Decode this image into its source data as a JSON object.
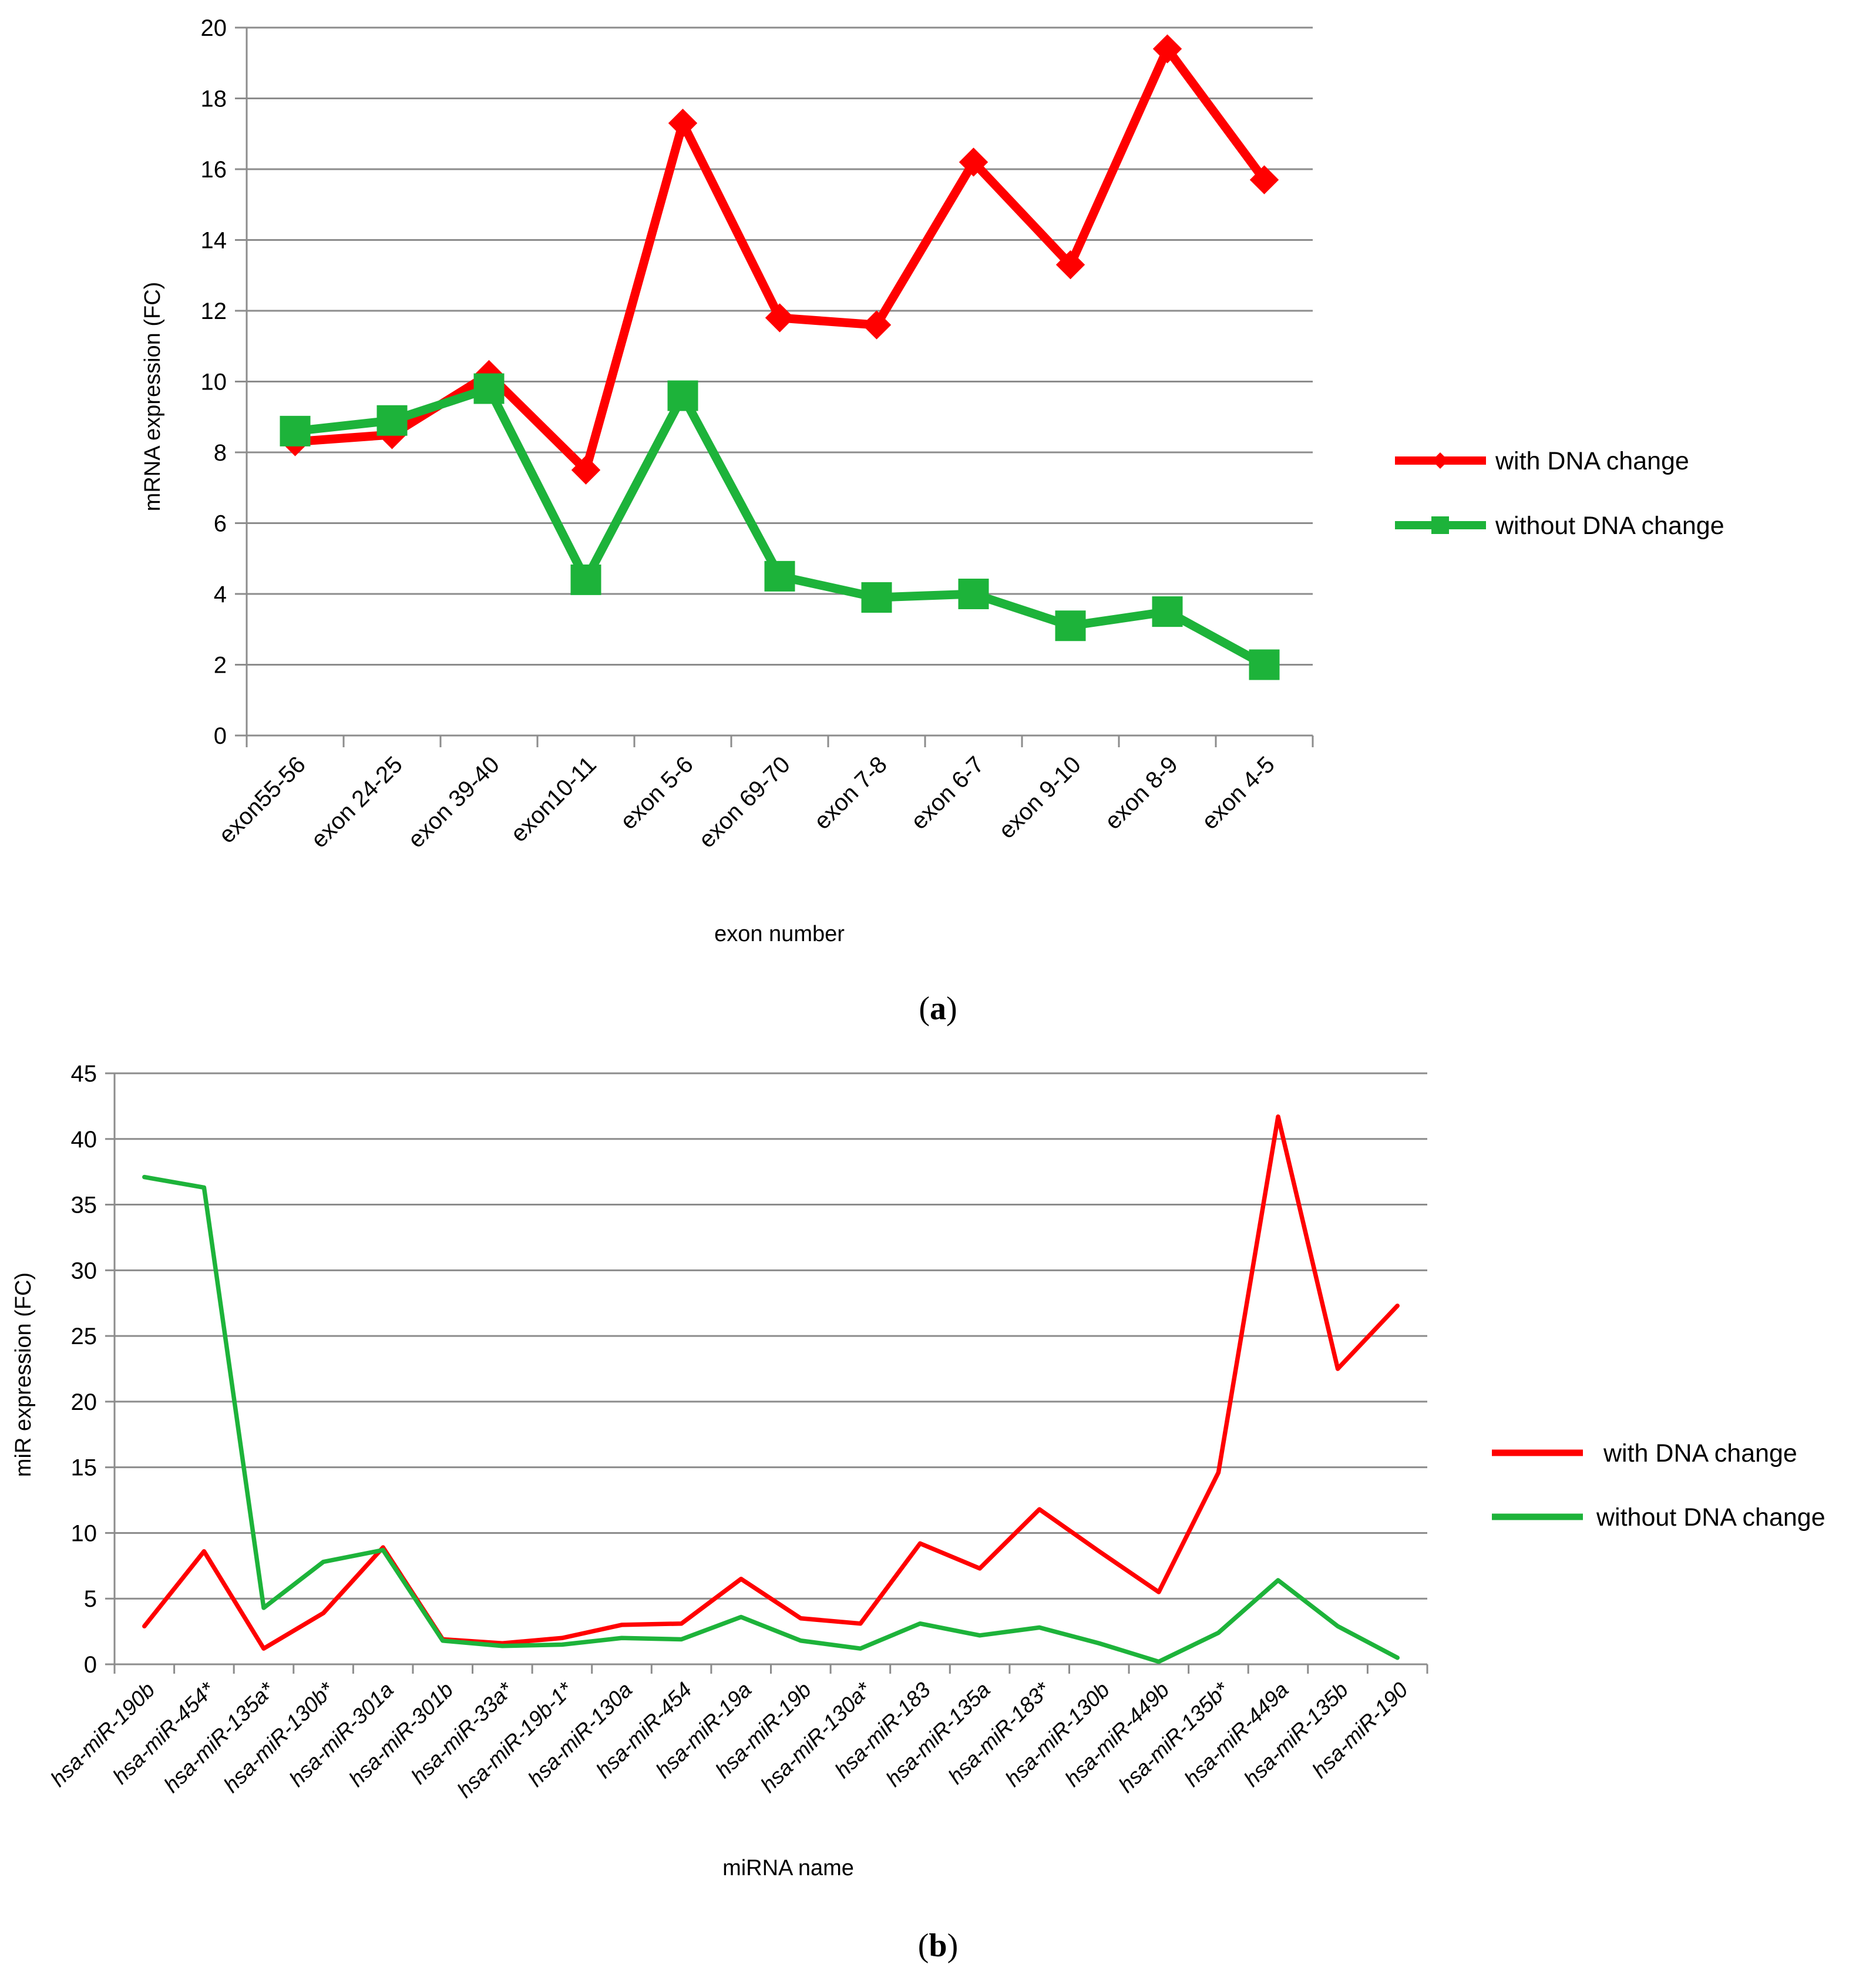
{
  "chart_data": [
    {
      "id": "a",
      "type": "line",
      "panel_label": "a",
      "xlabel": "exon number",
      "ylabel": "mRNA expression (FC)",
      "ylim": [
        0,
        20
      ],
      "yticks": [
        0,
        2,
        4,
        6,
        8,
        10,
        12,
        14,
        16,
        18,
        20
      ],
      "grid": true,
      "legend_position": "right",
      "categories": [
        "exon55-56",
        "exon 24-25",
        "exon 39-40",
        "exon10-11",
        "exon 5-6",
        "exon 69-70",
        "exon 7-8",
        "exon 6-7",
        "exon 9-10",
        "exon 8-9",
        "exon 4-5"
      ],
      "series": [
        {
          "name": "with DNA change",
          "color": "#ff0000",
          "marker": "diamond",
          "values": [
            8.3,
            8.5,
            10.2,
            7.5,
            17.3,
            11.8,
            11.6,
            16.2,
            13.3,
            19.4,
            15.7
          ]
        },
        {
          "name": "without DNA change",
          "color": "#1db33a",
          "marker": "square",
          "values": [
            8.6,
            8.9,
            9.8,
            4.4,
            9.6,
            4.5,
            3.9,
            4.0,
            3.1,
            3.5,
            2.0
          ]
        }
      ]
    },
    {
      "id": "b",
      "type": "line",
      "panel_label": "b",
      "xlabel": "miRNA name",
      "ylabel": "miR expression (FC)",
      "ylim": [
        0,
        45
      ],
      "yticks": [
        0,
        5,
        10,
        15,
        20,
        25,
        30,
        35,
        40,
        45
      ],
      "grid": true,
      "legend_position": "right",
      "categories": [
        "hsa-miR-190b",
        "hsa-miR-454*",
        "hsa-miR-135a*",
        "hsa-miR-130b*",
        "hsa-miR-301a",
        "hsa-miR-301b",
        "hsa-miR-33a*",
        "hsa-miR-19b-1*",
        "hsa-miR-130a",
        "hsa-miR-454",
        "hsa-miR-19a",
        "hsa-miR-19b",
        "hsa-miR-130a*",
        "hsa-miR-183",
        "hsa-miR-135a",
        "hsa-miR-183*",
        "hsa-miR-130b",
        "hsa-miR-449b",
        "hsa-miR-135b*",
        "hsa-miR-449a",
        "hsa-miR-135b",
        "hsa-miR-190"
      ],
      "series": [
        {
          "name": "with DNA change",
          "color": "#ff0000",
          "values": [
            2.9,
            8.6,
            1.2,
            3.9,
            8.9,
            1.9,
            1.6,
            2.0,
            3.0,
            3.1,
            6.5,
            3.5,
            3.1,
            9.2,
            7.3,
            11.8,
            8.6,
            5.5,
            14.6,
            41.7,
            22.5,
            27.3
          ]
        },
        {
          "name": "without DNA change",
          "color": "#1db33a",
          "values": [
            37.1,
            36.3,
            4.3,
            7.8,
            8.7,
            1.8,
            1.4,
            1.5,
            2.0,
            1.9,
            3.6,
            1.8,
            1.2,
            3.1,
            2.2,
            2.8,
            1.6,
            0.2,
            2.4,
            6.4,
            2.9,
            0.5
          ]
        }
      ]
    }
  ]
}
